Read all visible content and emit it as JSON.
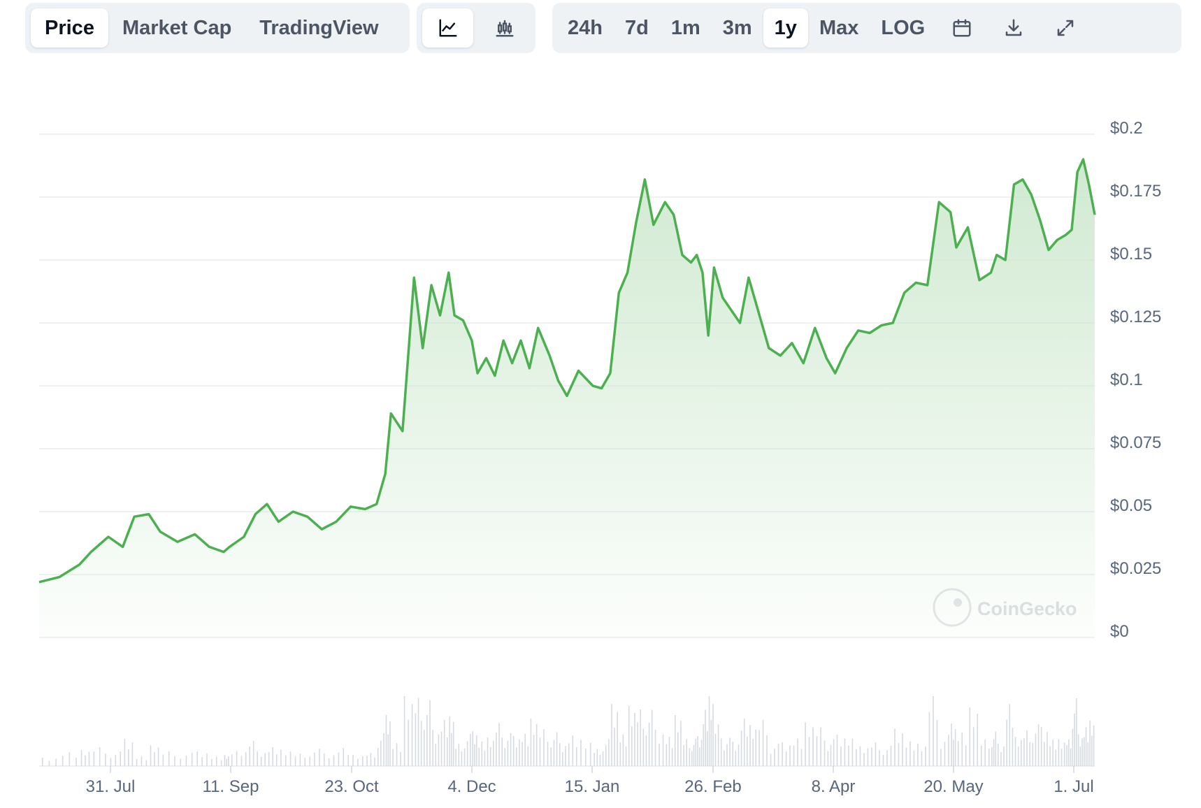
{
  "toolbar": {
    "chart_tabs": [
      {
        "label": "Price",
        "active": true
      },
      {
        "label": "Market Cap",
        "active": false
      },
      {
        "label": "TradingView",
        "active": false
      }
    ],
    "chart_style_icons": [
      "line-chart-icon",
      "candlestick-chart-icon"
    ],
    "range_tabs": [
      {
        "label": "24h",
        "active": false
      },
      {
        "label": "7d",
        "active": false
      },
      {
        "label": "1m",
        "active": false
      },
      {
        "label": "3m",
        "active": false
      },
      {
        "label": "1y",
        "active": true
      },
      {
        "label": "Max",
        "active": false
      },
      {
        "label": "LOG",
        "active": false
      }
    ],
    "action_icons": [
      "calendar-icon",
      "download-icon",
      "fullscreen-icon"
    ]
  },
  "watermark": "CoinGecko",
  "colors": {
    "line": "#4caf50",
    "area_top": "#c8e6c9",
    "grid": "#e8ecef",
    "axis_text": "#58667e",
    "volume": "#d6dbe1"
  },
  "chart_data": {
    "type": "area",
    "title": "",
    "xlabel": "",
    "ylabel": "",
    "ylim": [
      0,
      0.2
    ],
    "y_ticks": [
      "$0",
      "$0.025",
      "$0.05",
      "$0.075",
      "$0.1",
      "$0.125",
      "$0.15",
      "$0.175",
      "$0.2"
    ],
    "x_ticks": [
      "31. Jul",
      "11. Sep",
      "23. Oct",
      "4. Dec",
      "15. Jan",
      "26. Feb",
      "8. Apr",
      "20. May",
      "1. Jul"
    ],
    "x_range": [
      "2023-07-07",
      "2024-07-07"
    ],
    "series": [
      {
        "x": [
          "2023-07-07",
          "2023-07-14",
          "2023-07-21",
          "2023-07-25",
          "2023-07-31",
          "2023-08-05",
          "2023-08-09",
          "2023-08-14",
          "2023-08-18",
          "2023-08-24",
          "2023-08-30",
          "2023-09-04",
          "2023-09-09",
          "2023-09-11",
          "2023-09-16",
          "2023-09-20",
          "2023-09-24",
          "2023-09-28",
          "2023-10-03",
          "2023-10-08",
          "2023-10-13",
          "2023-10-18",
          "2023-10-23",
          "2023-10-28",
          "2023-11-01",
          "2023-11-04",
          "2023-11-06",
          "2023-11-10",
          "2023-11-14",
          "2023-11-17",
          "2023-11-20",
          "2023-11-23",
          "2023-11-26",
          "2023-11-28",
          "2023-12-01",
          "2023-12-04",
          "2023-12-06",
          "2023-12-09",
          "2023-12-12",
          "2023-12-15",
          "2023-12-18",
          "2023-12-21",
          "2023-12-24",
          "2023-12-27",
          "2023-12-31",
          "2024-01-03",
          "2024-01-06",
          "2024-01-10",
          "2024-01-15",
          "2024-01-18",
          "2024-01-21",
          "2024-01-24",
          "2024-01-27",
          "2024-01-30",
          "2024-02-02",
          "2024-02-05",
          "2024-02-09",
          "2024-02-12",
          "2024-02-15",
          "2024-02-18",
          "2024-02-20",
          "2024-02-22",
          "2024-02-24",
          "2024-02-26",
          "2024-02-29",
          "2024-03-03",
          "2024-03-06",
          "2024-03-09",
          "2024-03-12",
          "2024-03-16",
          "2024-03-20",
          "2024-03-24",
          "2024-03-28",
          "2024-04-01",
          "2024-04-05",
          "2024-04-08",
          "2024-04-12",
          "2024-04-16",
          "2024-04-20",
          "2024-04-24",
          "2024-04-28",
          "2024-05-02",
          "2024-05-06",
          "2024-05-10",
          "2024-05-14",
          "2024-05-18",
          "2024-05-20",
          "2024-05-24",
          "2024-05-28",
          "2024-06-01",
          "2024-06-03",
          "2024-06-06",
          "2024-06-09",
          "2024-06-12",
          "2024-06-15",
          "2024-06-18",
          "2024-06-21",
          "2024-06-24",
          "2024-06-27",
          "2024-06-29",
          "2024-07-01",
          "2024-07-03",
          "2024-07-05",
          "2024-07-07"
        ],
        "y": [
          0.022,
          0.024,
          0.029,
          0.034,
          0.04,
          0.036,
          0.048,
          0.049,
          0.042,
          0.038,
          0.041,
          0.036,
          0.034,
          0.036,
          0.04,
          0.049,
          0.053,
          0.046,
          0.05,
          0.048,
          0.043,
          0.046,
          0.052,
          0.051,
          0.053,
          0.065,
          0.089,
          0.082,
          0.143,
          0.115,
          0.14,
          0.128,
          0.145,
          0.128,
          0.126,
          0.118,
          0.105,
          0.111,
          0.104,
          0.118,
          0.109,
          0.118,
          0.107,
          0.123,
          0.112,
          0.102,
          0.096,
          0.106,
          0.1,
          0.099,
          0.105,
          0.137,
          0.145,
          0.165,
          0.182,
          0.164,
          0.173,
          0.168,
          0.152,
          0.149,
          0.152,
          0.145,
          0.12,
          0.147,
          0.135,
          0.13,
          0.125,
          0.143,
          0.131,
          0.115,
          0.112,
          0.117,
          0.109,
          0.123,
          0.111,
          0.105,
          0.115,
          0.122,
          0.121,
          0.124,
          0.125,
          0.137,
          0.141,
          0.14,
          0.173,
          0.169,
          0.155,
          0.163,
          0.142,
          0.145,
          0.152,
          0.15,
          0.18,
          0.182,
          0.176,
          0.166,
          0.154,
          0.158,
          0.16,
          0.162,
          0.185,
          0.19,
          0.18,
          0.168
        ]
      }
    ]
  }
}
